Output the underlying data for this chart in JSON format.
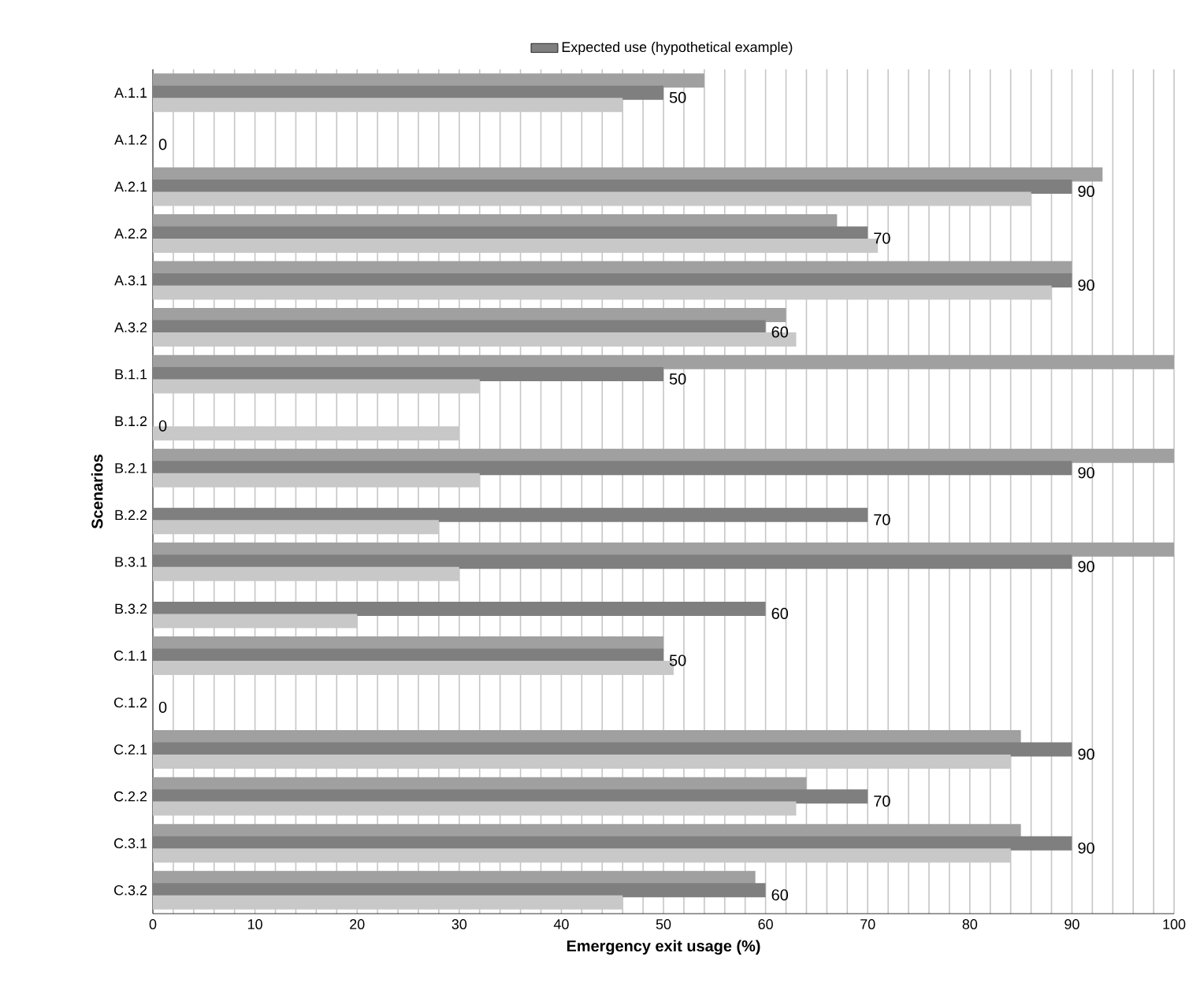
{
  "chart_data": {
    "type": "bar",
    "orientation": "horizontal",
    "xlabel": "Emergency exit usage (%)",
    "ylabel": "Scenarios",
    "categories": [
      "A.1.1",
      "A.1.2",
      "A.2.1",
      "A.2.2",
      "A.3.1",
      "A.3.2",
      "B.1.1",
      "B.1.2",
      "B.2.1",
      "B.2.2",
      "B.3.1",
      "B.3.2",
      "C.1.1",
      "C.1.2",
      "C.2.1",
      "C.2.2",
      "C.3.1",
      "C.3.2"
    ],
    "series": [
      {
        "color": "#a0a0a0",
        "values": [
          54,
          0,
          93,
          67,
          90,
          62,
          100,
          0,
          100,
          0,
          100,
          0,
          50,
          0,
          85,
          64,
          85,
          59
        ]
      },
      {
        "name": "Expected use (hypothetical example)",
        "color": "#7f7f7f",
        "values": [
          50,
          0,
          90,
          70,
          90,
          60,
          50,
          0,
          90,
          70,
          90,
          60,
          50,
          0,
          90,
          70,
          90,
          60
        ],
        "value_labels": [
          "50",
          "0",
          "90",
          "70",
          "90",
          "60",
          "50",
          "0",
          "90",
          "70",
          "90",
          "60",
          "50",
          "0",
          "90",
          "70",
          "90",
          "60"
        ]
      },
      {
        "color": "#c8c8c8",
        "values": [
          46,
          0,
          86,
          71,
          88,
          63,
          32,
          30,
          32,
          28,
          30,
          20,
          51,
          0,
          84,
          63,
          84,
          46
        ]
      }
    ],
    "xlim": [
      0,
      100
    ],
    "xticks": [
      0,
      {
        "value": 2,
        "label": null
      },
      {
        "value": 4,
        "label": null
      },
      {
        "value": 6,
        "label": null
      },
      {
        "value": 8,
        "label": null
      },
      10,
      {
        "value": 12,
        "label": null
      },
      {
        "value": 14,
        "label": null
      },
      {
        "value": 16,
        "label": null
      },
      {
        "value": 18,
        "label": null
      },
      20,
      {
        "value": 22,
        "label": null
      },
      {
        "value": 24,
        "label": null
      },
      {
        "value": 26,
        "label": null
      },
      {
        "value": 28,
        "label": null
      },
      30,
      {
        "value": 32,
        "label": null
      },
      {
        "value": 34,
        "label": null
      },
      {
        "value": 36,
        "label": null
      },
      {
        "value": 38,
        "label": null
      },
      40,
      {
        "value": 42,
        "label": null
      },
      {
        "value": 44,
        "label": null
      },
      {
        "value": 46,
        "label": null
      },
      {
        "value": 48,
        "label": null
      },
      50,
      {
        "value": 52,
        "label": null
      },
      {
        "value": 54,
        "label": null
      },
      {
        "value": 56,
        "label": null
      },
      {
        "value": 58,
        "label": null
      },
      60,
      {
        "value": 62,
        "label": null
      },
      {
        "value": 64,
        "label": null
      },
      {
        "value": 66,
        "label": null
      },
      {
        "value": 68,
        "label": null
      },
      70,
      {
        "value": 72,
        "label": null
      },
      {
        "value": 74,
        "label": null
      },
      {
        "value": 76,
        "label": null
      },
      {
        "value": 78,
        "label": null
      },
      80,
      {
        "value": 82,
        "label": null
      },
      {
        "value": 84,
        "label": null
      },
      {
        "value": 86,
        "label": null
      },
      {
        "value": 88,
        "label": null
      },
      90,
      {
        "value": 92,
        "label": null
      },
      {
        "value": 94,
        "label": null
      },
      {
        "value": 96,
        "label": null
      },
      {
        "value": 98,
        "label": null
      },
      100
    ],
    "grid": "x",
    "legend": "top"
  }
}
